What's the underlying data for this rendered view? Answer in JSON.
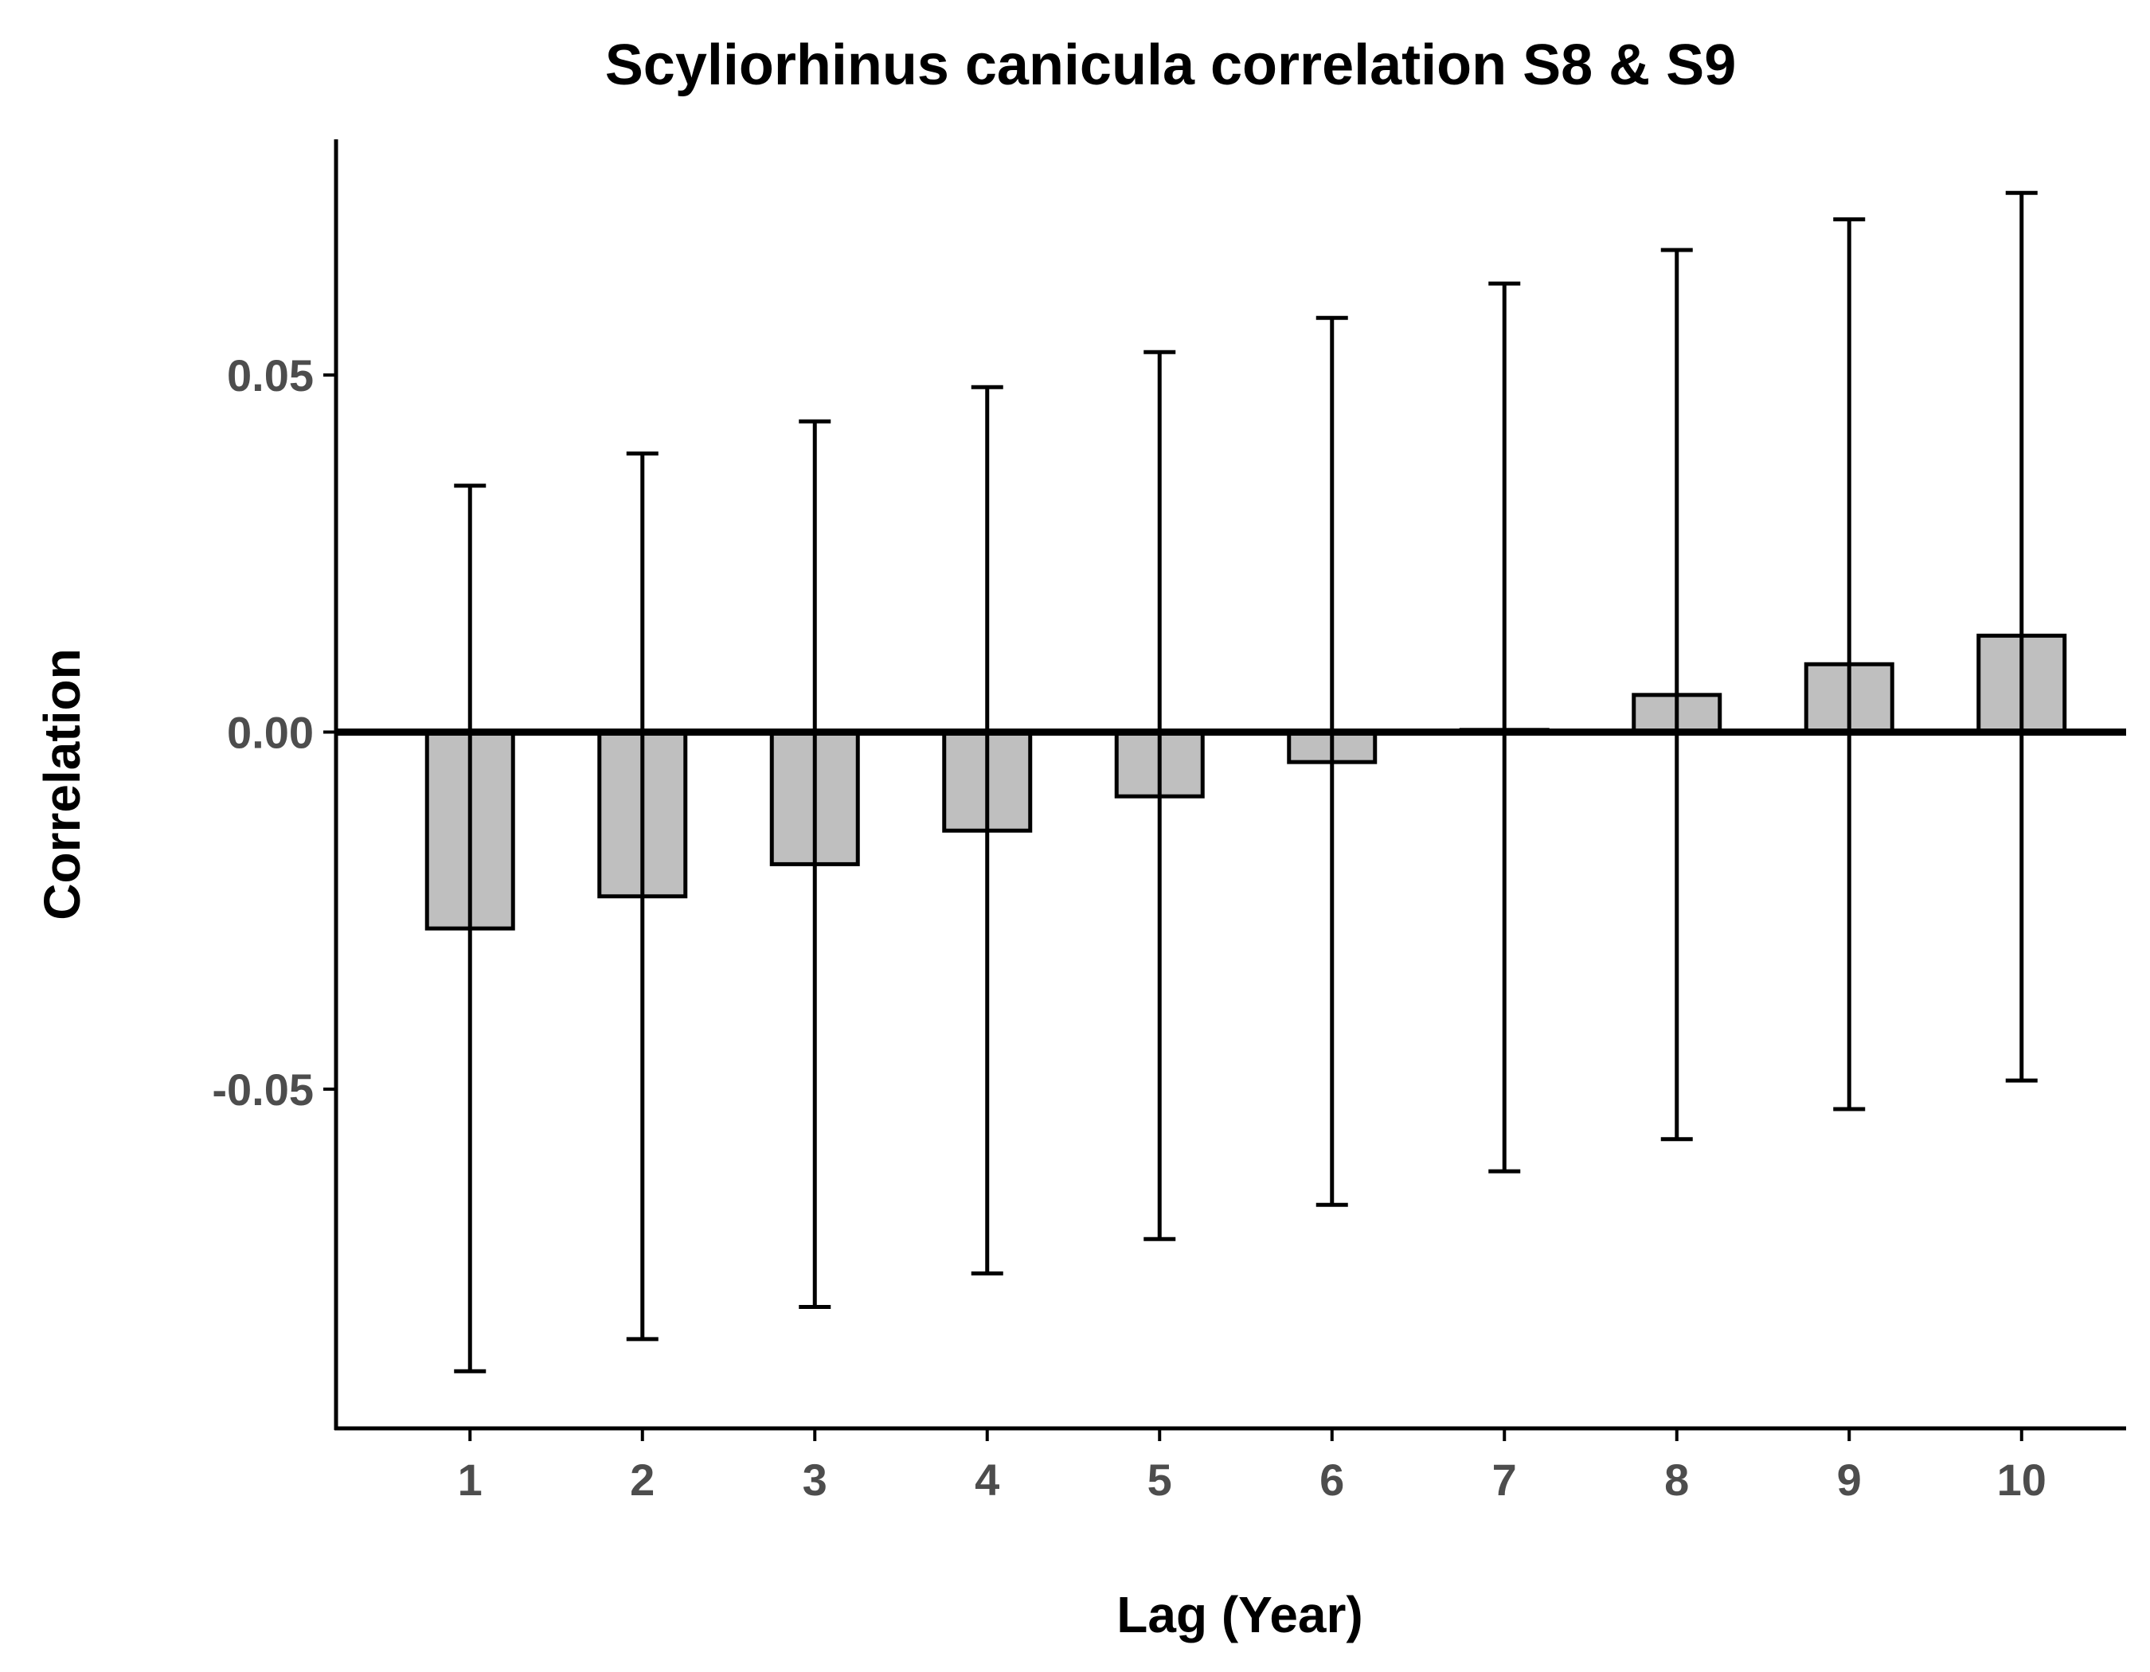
{
  "chart_data": {
    "type": "bar",
    "title": "Scyliorhinus canicula correlation S8 & S9",
    "xlabel": "Lag (Year)",
    "ylabel": "Correlation",
    "categories": [
      "1",
      "2",
      "3",
      "4",
      "5",
      "6",
      "7",
      "8",
      "9",
      "10"
    ],
    "values": [
      -0.0275,
      -0.023,
      -0.0185,
      -0.0138,
      -0.009,
      -0.0042,
      0.0003,
      0.0052,
      0.0095,
      0.0135
    ],
    "error_upper": [
      0.0345,
      0.039,
      0.0435,
      0.0483,
      0.0532,
      0.058,
      0.0628,
      0.0675,
      0.0718,
      0.0755
    ],
    "error_lower": [
      -0.0895,
      -0.085,
      -0.0805,
      -0.0758,
      -0.071,
      -0.0662,
      -0.0615,
      -0.057,
      -0.0528,
      -0.0488
    ],
    "yticks": [
      -0.05,
      0.0,
      0.05
    ],
    "ytick_labels": [
      "-0.05",
      "0.00",
      "0.05"
    ],
    "ylim": [
      -0.0975,
      0.083
    ],
    "grid": false,
    "bar_color": "#bfbfbf",
    "bar_edge_color": "#000000"
  }
}
